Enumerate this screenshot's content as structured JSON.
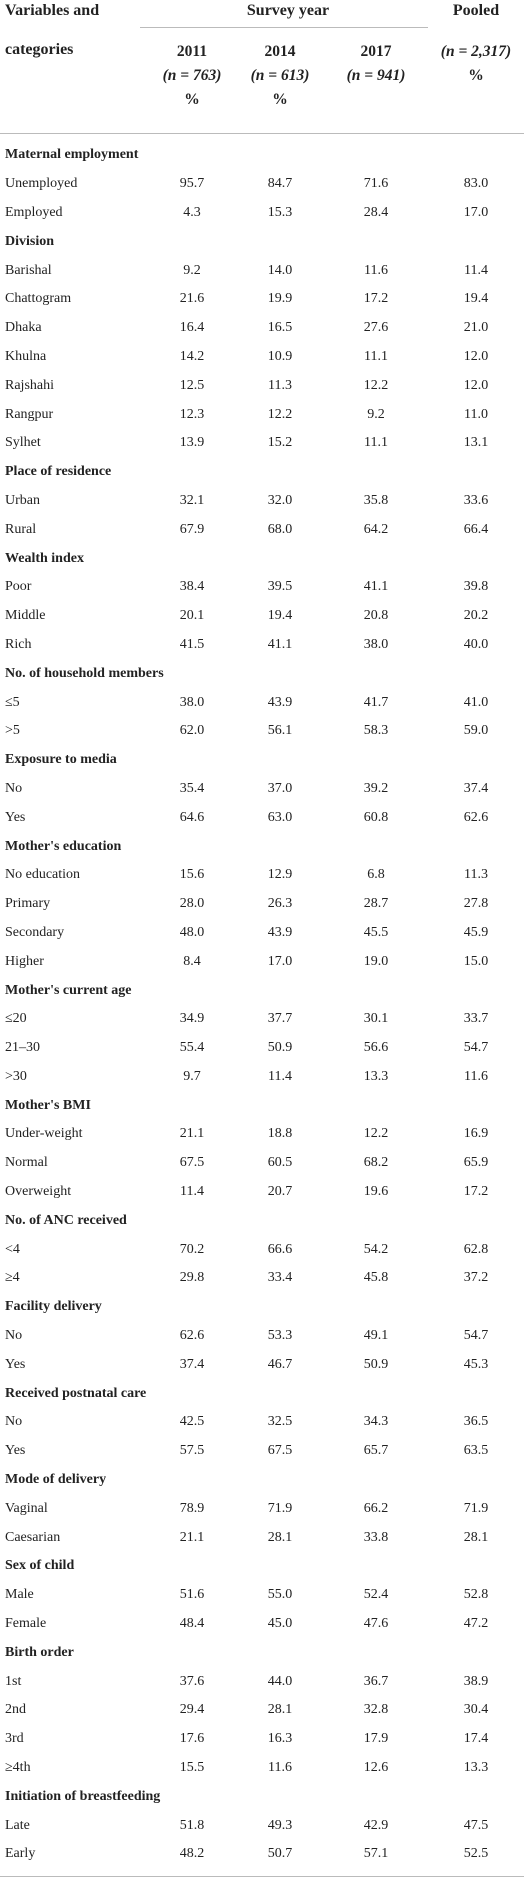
{
  "header": {
    "variables_line1": "Variables and",
    "variables_line2": "categories",
    "survey_year": "Survey year",
    "pooled": "Pooled",
    "columns": [
      {
        "year": "2011",
        "n": "(n = 763)",
        "unit": "%"
      },
      {
        "year": "2014",
        "n": "(n = 613)",
        "unit": "%"
      },
      {
        "year": "2017",
        "n": "(n = 941)",
        "unit": ""
      },
      {
        "year": "",
        "n": "(n = 2,317)",
        "unit": "%"
      }
    ]
  },
  "rows": [
    {
      "type": "section",
      "label": "Maternal employment"
    },
    {
      "type": "data",
      "label": "Unemployed",
      "values": [
        "95.7",
        "84.7",
        "71.6",
        "83.0"
      ]
    },
    {
      "type": "data",
      "label": "Employed",
      "values": [
        "4.3",
        "15.3",
        "28.4",
        "17.0"
      ]
    },
    {
      "type": "section",
      "label": "Division"
    },
    {
      "type": "data",
      "label": "Barishal",
      "values": [
        "9.2",
        "14.0",
        "11.6",
        "11.4"
      ]
    },
    {
      "type": "data",
      "label": "Chattogram",
      "values": [
        "21.6",
        "19.9",
        "17.2",
        "19.4"
      ]
    },
    {
      "type": "data",
      "label": "Dhaka",
      "values": [
        "16.4",
        "16.5",
        "27.6",
        "21.0"
      ]
    },
    {
      "type": "data",
      "label": "Khulna",
      "values": [
        "14.2",
        "10.9",
        "11.1",
        "12.0"
      ]
    },
    {
      "type": "data",
      "label": "Rajshahi",
      "values": [
        "12.5",
        "11.3",
        "12.2",
        "12.0"
      ]
    },
    {
      "type": "data",
      "label": "Rangpur",
      "values": [
        "12.3",
        "12.2",
        "9.2",
        "11.0"
      ]
    },
    {
      "type": "data",
      "label": "Sylhet",
      "values": [
        "13.9",
        "15.2",
        "11.1",
        "13.1"
      ]
    },
    {
      "type": "section",
      "label": "Place of residence"
    },
    {
      "type": "data",
      "label": "Urban",
      "values": [
        "32.1",
        "32.0",
        "35.8",
        "33.6"
      ]
    },
    {
      "type": "data",
      "label": "Rural",
      "values": [
        "67.9",
        "68.0",
        "64.2",
        "66.4"
      ]
    },
    {
      "type": "section",
      "label": "Wealth index"
    },
    {
      "type": "data",
      "label": "Poor",
      "values": [
        "38.4",
        "39.5",
        "41.1",
        "39.8"
      ]
    },
    {
      "type": "data",
      "label": "Middle",
      "values": [
        "20.1",
        "19.4",
        "20.8",
        "20.2"
      ]
    },
    {
      "type": "data",
      "label": "Rich",
      "values": [
        "41.5",
        "41.1",
        "38.0",
        "40.0"
      ]
    },
    {
      "type": "section",
      "label": "No. of household members"
    },
    {
      "type": "data",
      "label": "≤5",
      "values": [
        "38.0",
        "43.9",
        "41.7",
        "41.0"
      ]
    },
    {
      "type": "data",
      "label": ">5",
      "values": [
        "62.0",
        "56.1",
        "58.3",
        "59.0"
      ]
    },
    {
      "type": "section",
      "label": "Exposure to media"
    },
    {
      "type": "data",
      "label": "No",
      "values": [
        "35.4",
        "37.0",
        "39.2",
        "37.4"
      ]
    },
    {
      "type": "data",
      "label": "Yes",
      "values": [
        "64.6",
        "63.0",
        "60.8",
        "62.6"
      ]
    },
    {
      "type": "section",
      "label": "Mother's education"
    },
    {
      "type": "data",
      "label": "No education",
      "values": [
        "15.6",
        "12.9",
        "6.8",
        "11.3"
      ]
    },
    {
      "type": "data",
      "label": "Primary",
      "values": [
        "28.0",
        "26.3",
        "28.7",
        "27.8"
      ]
    },
    {
      "type": "data",
      "label": "Secondary",
      "values": [
        "48.0",
        "43.9",
        "45.5",
        "45.9"
      ]
    },
    {
      "type": "data",
      "label": "Higher",
      "values": [
        "8.4",
        "17.0",
        "19.0",
        "15.0"
      ]
    },
    {
      "type": "section",
      "label": "Mother's current age"
    },
    {
      "type": "data",
      "label": "≤20",
      "values": [
        "34.9",
        "37.7",
        "30.1",
        "33.7"
      ]
    },
    {
      "type": "data",
      "label": "21–30",
      "values": [
        "55.4",
        "50.9",
        "56.6",
        "54.7"
      ]
    },
    {
      "type": "data",
      "label": ">30",
      "values": [
        "9.7",
        "11.4",
        "13.3",
        "11.6"
      ]
    },
    {
      "type": "section",
      "label": "Mother's BMI"
    },
    {
      "type": "data",
      "label": "Under-weight",
      "values": [
        "21.1",
        "18.8",
        "12.2",
        "16.9"
      ]
    },
    {
      "type": "data",
      "label": "Normal",
      "values": [
        "67.5",
        "60.5",
        "68.2",
        "65.9"
      ]
    },
    {
      "type": "data",
      "label": "Overweight",
      "values": [
        "11.4",
        "20.7",
        "19.6",
        "17.2"
      ]
    },
    {
      "type": "section",
      "label": "No. of ANC received"
    },
    {
      "type": "data",
      "label": "<4",
      "values": [
        "70.2",
        "66.6",
        "54.2",
        "62.8"
      ]
    },
    {
      "type": "data",
      "label": "≥4",
      "values": [
        "29.8",
        "33.4",
        "45.8",
        "37.2"
      ]
    },
    {
      "type": "section",
      "label": "Facility delivery"
    },
    {
      "type": "data",
      "label": "No",
      "values": [
        "62.6",
        "53.3",
        "49.1",
        "54.7"
      ]
    },
    {
      "type": "data",
      "label": "Yes",
      "values": [
        "37.4",
        "46.7",
        "50.9",
        "45.3"
      ]
    },
    {
      "type": "section",
      "label": "Received postnatal care"
    },
    {
      "type": "data",
      "label": "No",
      "values": [
        "42.5",
        "32.5",
        "34.3",
        "36.5"
      ]
    },
    {
      "type": "data",
      "label": "Yes",
      "values": [
        "57.5",
        "67.5",
        "65.7",
        "63.5"
      ]
    },
    {
      "type": "section",
      "label": "Mode of delivery"
    },
    {
      "type": "data",
      "label": "Vaginal",
      "values": [
        "78.9",
        "71.9",
        "66.2",
        "71.9"
      ]
    },
    {
      "type": "data",
      "label": "Caesarian",
      "values": [
        "21.1",
        "28.1",
        "33.8",
        "28.1"
      ]
    },
    {
      "type": "section",
      "label": "Sex of child"
    },
    {
      "type": "data",
      "label": "Male",
      "values": [
        "51.6",
        "55.0",
        "52.4",
        "52.8"
      ]
    },
    {
      "type": "data",
      "label": "Female",
      "values": [
        "48.4",
        "45.0",
        "47.6",
        "47.2"
      ]
    },
    {
      "type": "section",
      "label": "Birth order"
    },
    {
      "type": "data",
      "label": "1st",
      "values": [
        "37.6",
        "44.0",
        "36.7",
        "38.9"
      ]
    },
    {
      "type": "data",
      "label": "2nd",
      "values": [
        "29.4",
        "28.1",
        "32.8",
        "30.4"
      ]
    },
    {
      "type": "data",
      "label": "3rd",
      "values": [
        "17.6",
        "16.3",
        "17.9",
        "17.4"
      ]
    },
    {
      "type": "data",
      "label": "≥4th",
      "values": [
        "15.5",
        "11.6",
        "12.6",
        "13.3"
      ]
    },
    {
      "type": "section",
      "label": "Initiation of breastfeeding"
    },
    {
      "type": "data",
      "label": "Late",
      "values": [
        "51.8",
        "49.3",
        "42.9",
        "47.5"
      ]
    },
    {
      "type": "data",
      "label": "Early",
      "values": [
        "48.2",
        "50.7",
        "57.1",
        "52.5"
      ]
    }
  ]
}
